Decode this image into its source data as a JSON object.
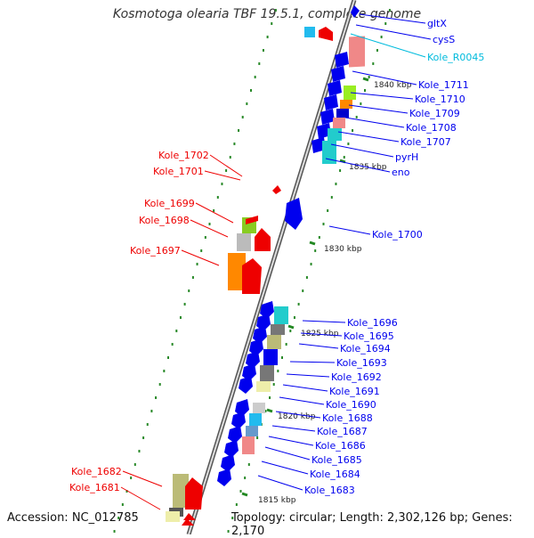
{
  "title": "Kosmotoga olearia TBF 19.5.1, complete genome",
  "footer": {
    "accession": "Accession: NC_012785",
    "stats": "Topology: circular; Length: 2,302,126 bp; Genes: 2,170"
  },
  "colors": {
    "forward": "#0000ee",
    "reverse": "#ee0000",
    "rna_label": "#00bbdd",
    "backbone": "#888888",
    "tick": "#228822"
  },
  "kbp_marks": [
    "1840 kbp",
    "1835 kbp",
    "1830 kbp",
    "1825 kbp",
    "1820 kbp",
    "1815 kbp"
  ],
  "right_labels": [
    "gltX",
    "cysS",
    "Kole_R0045",
    "Kole_1711",
    "Kole_1710",
    "Kole_1709",
    "Kole_1708",
    "Kole_1707",
    "pyrH",
    "eno",
    "Kole_1700",
    "Kole_1696",
    "Kole_1695",
    "Kole_1694",
    "Kole_1693",
    "Kole_1692",
    "Kole_1691",
    "Kole_1690",
    "Kole_1688",
    "Kole_1687",
    "Kole_1686",
    "Kole_1685",
    "Kole_1684",
    "Kole_1683"
  ],
  "left_labels": [
    "Kole_1702",
    "Kole_1701",
    "Kole_1699",
    "Kole_1698",
    "Kole_1697",
    "Kole_1682",
    "Kole_1681"
  ]
}
